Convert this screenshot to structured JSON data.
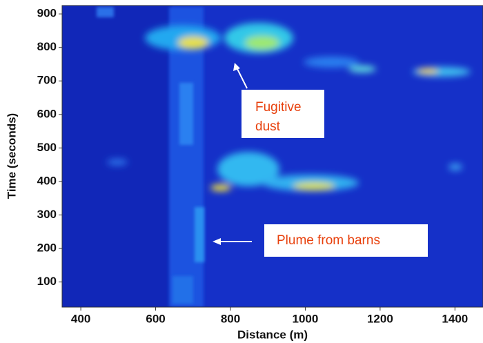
{
  "chart_data": {
    "type": "heatmap",
    "x_label": "Distance (m)",
    "y_label": "Time (seconds)",
    "xlim": [
      350,
      1475
    ],
    "xticks": [
      400,
      600,
      800,
      1000,
      1200,
      1400
    ],
    "ylim": [
      25,
      925
    ],
    "yticks": [
      100,
      200,
      300,
      400,
      500,
      600,
      700,
      800,
      900
    ],
    "annotations": [
      {
        "lines": [
          "Fugitive",
          "dust"
        ]
      },
      {
        "lines": [
          "Plume from barns"
        ]
      }
    ]
  }
}
